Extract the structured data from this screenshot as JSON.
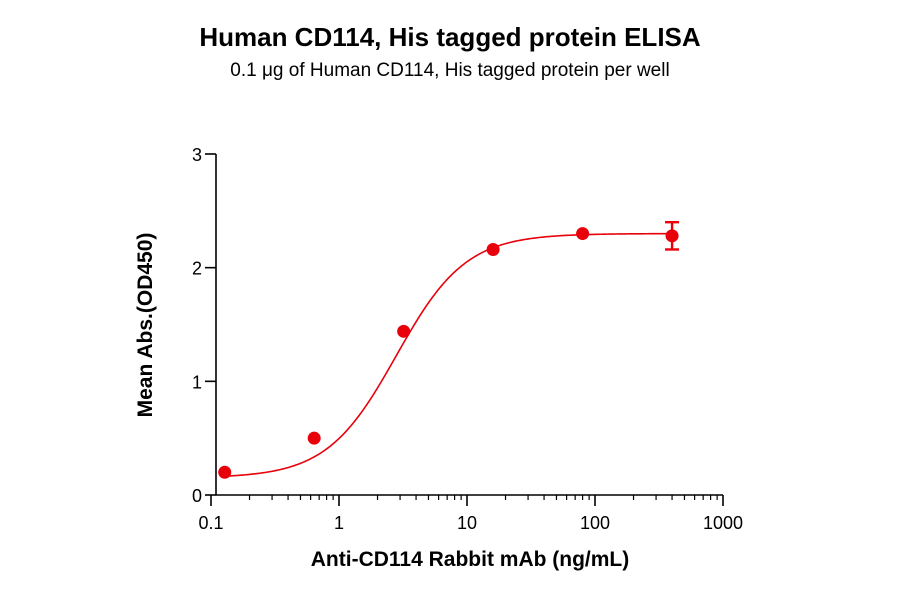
{
  "chart_data": {
    "type": "scatter",
    "title": "Human CD114, His tagged protein ELISA",
    "subtitle": "0.1 μg of Human CD114, His tagged protein per well",
    "xlabel": "Anti-CD114 Rabbit mAb (ng/mL)",
    "ylabel": "Mean Abs.(OD450)",
    "xscale": "log",
    "xlim": [
      0.1,
      1000
    ],
    "ylim": [
      0,
      3
    ],
    "x_ticks": [
      {
        "value": 0.1,
        "label": "0.1"
      },
      {
        "value": 1,
        "label": "1"
      },
      {
        "value": 10,
        "label": "10"
      },
      {
        "value": 100,
        "label": "100"
      },
      {
        "value": 1000,
        "label": "1000"
      }
    ],
    "y_ticks": [
      {
        "value": 0,
        "label": "0"
      },
      {
        "value": 1,
        "label": "1"
      },
      {
        "value": 2,
        "label": "2"
      },
      {
        "value": 3,
        "label": "3"
      }
    ],
    "series": [
      {
        "color": "#e8000b",
        "points": [
          {
            "x": 0.128,
            "y": 0.2
          },
          {
            "x": 0.64,
            "y": 0.5
          },
          {
            "x": 3.2,
            "y": 1.44
          },
          {
            "x": 16,
            "y": 2.16
          },
          {
            "x": 80,
            "y": 2.3
          },
          {
            "x": 400,
            "y": 2.28,
            "err": 0.12
          }
        ],
        "fit": {
          "bottom": 0.15,
          "top": 2.3,
          "ec50": 2.8,
          "hill": 1.6
        }
      }
    ],
    "grid": false,
    "legend": "none"
  }
}
